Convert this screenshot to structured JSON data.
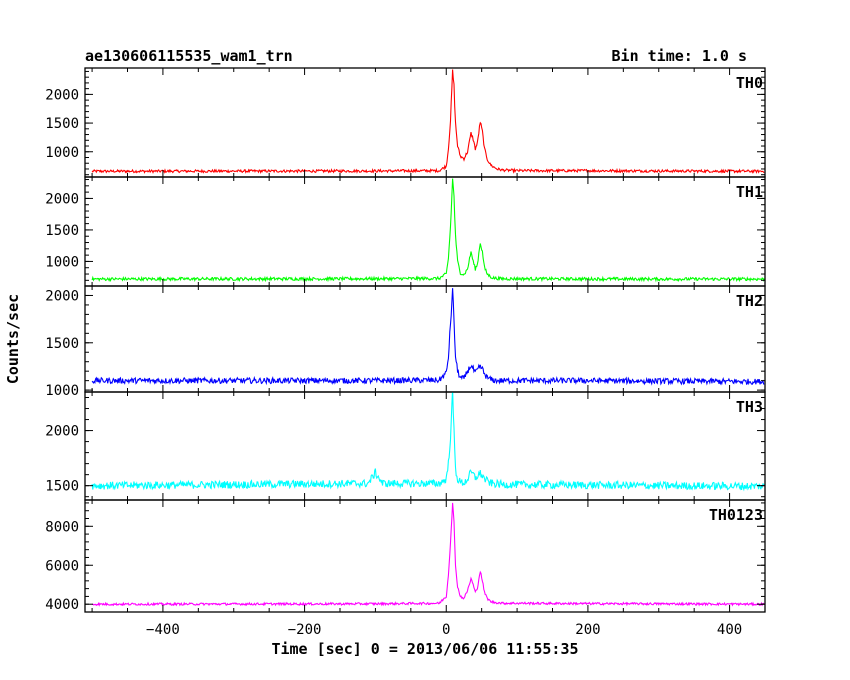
{
  "chart_data": {
    "type": "line",
    "title": "ae130606115535_wam1_trn",
    "subtitle": "Bin time: 1.0 s",
    "xlabel": "Time [sec] 0 = 2013/06/06 11:55:35",
    "ylabel": "Counts/sec",
    "xlim": [
      -510,
      450
    ],
    "x_ticks": [
      "−400",
      "−200",
      "0",
      "200",
      "400"
    ],
    "x_tick_values": [
      -400,
      -200,
      0,
      200,
      400
    ],
    "grid": false,
    "panels": [
      {
        "name": "TH0",
        "color": "#ff0000",
        "ylim": [
          560,
          2460
        ],
        "y_ticks": [
          "1000",
          "1500",
          "2000"
        ],
        "y_tick_values": [
          1000,
          1500,
          2000
        ],
        "x": [
          -500,
          -100,
          -10,
          0,
          3,
          6,
          9,
          11,
          13,
          16,
          20,
          25,
          30,
          35,
          38,
          41,
          44,
          48,
          51,
          54,
          58,
          62,
          66,
          72,
          80,
          100,
          200,
          300,
          450
        ],
        "y": [
          660,
          665,
          670,
          750,
          1050,
          1550,
          2400,
          2150,
          1500,
          1100,
          920,
          880,
          1000,
          1320,
          1220,
          1050,
          1150,
          1520,
          1350,
          1050,
          870,
          780,
          740,
          700,
          680,
          670,
          670,
          665,
          660
        ]
      },
      {
        "name": "TH1",
        "color": "#00ff00",
        "ylim": [
          610,
          2340
        ],
        "y_ticks": [
          "1000",
          "1500",
          "2000"
        ],
        "y_tick_values": [
          1000,
          1500,
          2000
        ],
        "x": [
          -500,
          -100,
          -10,
          0,
          3,
          6,
          9,
          11,
          13,
          16,
          20,
          25,
          30,
          35,
          38,
          41,
          44,
          48,
          51,
          54,
          58,
          62,
          66,
          72,
          80,
          100,
          200,
          300,
          450
        ],
        "y": [
          720,
          725,
          730,
          800,
          1050,
          1550,
          2300,
          2050,
          1400,
          1000,
          820,
          790,
          880,
          1150,
          1000,
          880,
          950,
          1300,
          1150,
          900,
          800,
          760,
          740,
          730,
          725,
          725,
          722,
          720,
          720
        ],
        "y_min_visible": 690
      },
      {
        "name": "TH2",
        "color": "#0000ff",
        "ylim": [
          980,
          2100
        ],
        "y_ticks": [
          "1000",
          "1500",
          "2000"
        ],
        "y_tick_values": [
          1000,
          1500,
          2000
        ],
        "x": [
          -500,
          -100,
          -10,
          0,
          3,
          6,
          9,
          11,
          13,
          16,
          20,
          25,
          30,
          35,
          38,
          41,
          44,
          48,
          51,
          54,
          58,
          62,
          66,
          72,
          80,
          100,
          200,
          300,
          450
        ],
        "y": [
          1100,
          1100,
          1105,
          1180,
          1350,
          1700,
          2050,
          1750,
          1350,
          1200,
          1130,
          1120,
          1200,
          1260,
          1220,
          1180,
          1210,
          1250,
          1220,
          1170,
          1130,
          1115,
          1105,
          1100,
          1100,
          1100,
          1100,
          1095,
          1090
        ]
      },
      {
        "name": "TH3",
        "color": "#00ffff",
        "ylim": [
          1370,
          2350
        ],
        "y_ticks": [
          "1500",
          "2000"
        ],
        "y_tick_values": [
          1500,
          2000
        ],
        "x": [
          -500,
          -300,
          -110,
          -100,
          -90,
          -10,
          0,
          3,
          6,
          9,
          11,
          13,
          16,
          20,
          25,
          30,
          35,
          38,
          41,
          44,
          48,
          51,
          54,
          58,
          62,
          66,
          72,
          80,
          100,
          200,
          300,
          450
        ],
        "y": [
          1500,
          1510,
          1520,
          1620,
          1520,
          1520,
          1560,
          1700,
          1950,
          2340,
          2000,
          1650,
          1560,
          1530,
          1525,
          1560,
          1620,
          1600,
          1570,
          1590,
          1610,
          1590,
          1560,
          1540,
          1525,
          1520,
          1515,
          1510,
          1510,
          1505,
          1500,
          1495
        ]
      },
      {
        "name": "TH0123",
        "color": "#ff00ff",
        "ylim": [
          3600,
          9350
        ],
        "y_ticks": [
          "4000",
          "6000",
          "8000"
        ],
        "y_tick_values": [
          4000,
          6000,
          8000
        ],
        "x": [
          -500,
          -100,
          -10,
          0,
          3,
          6,
          9,
          11,
          13,
          16,
          20,
          25,
          30,
          35,
          38,
          41,
          44,
          48,
          51,
          54,
          58,
          62,
          66,
          72,
          80,
          100,
          200,
          300,
          450
        ],
        "y": [
          4000,
          4020,
          4050,
          4400,
          5500,
          7200,
          9200,
          8200,
          6000,
          4900,
          4400,
          4300,
          4700,
          5300,
          5000,
          4600,
          4850,
          5700,
          5200,
          4600,
          4300,
          4150,
          4100,
          4080,
          4050,
          4050,
          4030,
          4020,
          4000
        ]
      }
    ]
  }
}
